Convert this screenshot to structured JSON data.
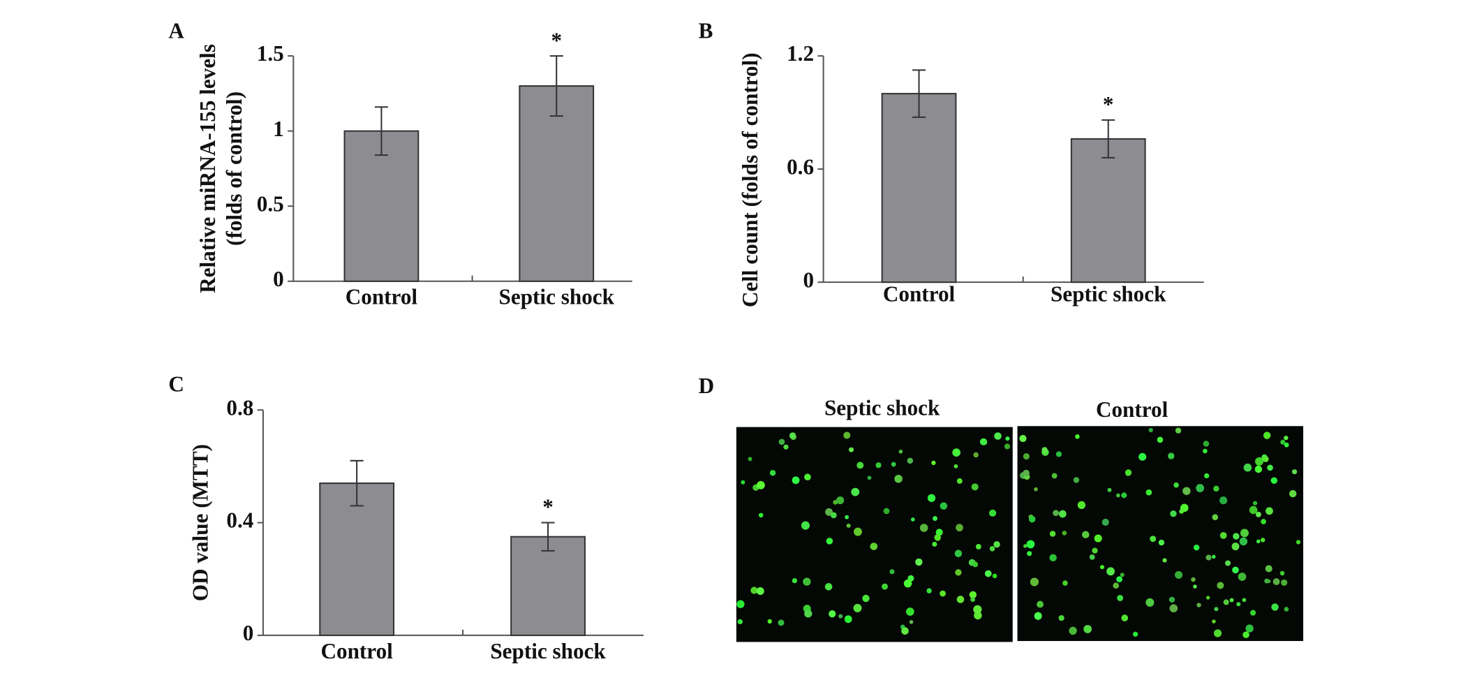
{
  "chart_data": [
    {
      "type": "bar",
      "label": "A",
      "ylabel": [
        "Relative miRNA-155 levels",
        "(folds of control)"
      ],
      "categories": [
        "Control",
        "Septic shock"
      ],
      "values": [
        1.0,
        1.3
      ],
      "errors": [
        0.16,
        0.2
      ],
      "significance": [
        null,
        "*"
      ],
      "color": "#8c8c91",
      "ylim": [
        0,
        1.5
      ],
      "yticks": [
        0,
        0.5,
        1,
        1.5
      ]
    },
    {
      "type": "bar",
      "label": "B",
      "ylabel": "Cell  count (folds of control)",
      "categories": [
        "Control",
        "Septic shock"
      ],
      "values": [
        1.0,
        0.76
      ],
      "errors": [
        0.125,
        0.1
      ],
      "significance": [
        null,
        "*"
      ],
      "color": "#8c8c91",
      "ylim": [
        0,
        1.2
      ],
      "yticks": [
        0,
        0.6,
        1.2
      ]
    },
    {
      "type": "bar",
      "label": "C",
      "ylabel": "OD value (MTT)",
      "categories": [
        "Control",
        "Septic shock"
      ],
      "values": [
        0.54,
        0.35
      ],
      "errors": [
        0.08,
        0.05
      ],
      "significance": [
        null,
        "*"
      ],
      "color": "#8c8c91",
      "ylim": [
        0,
        0.8
      ],
      "yticks": [
        0,
        0.4,
        0.8
      ]
    }
  ],
  "panel_d": {
    "label": "D",
    "images": [
      "Septic shock",
      "Control"
    ]
  }
}
